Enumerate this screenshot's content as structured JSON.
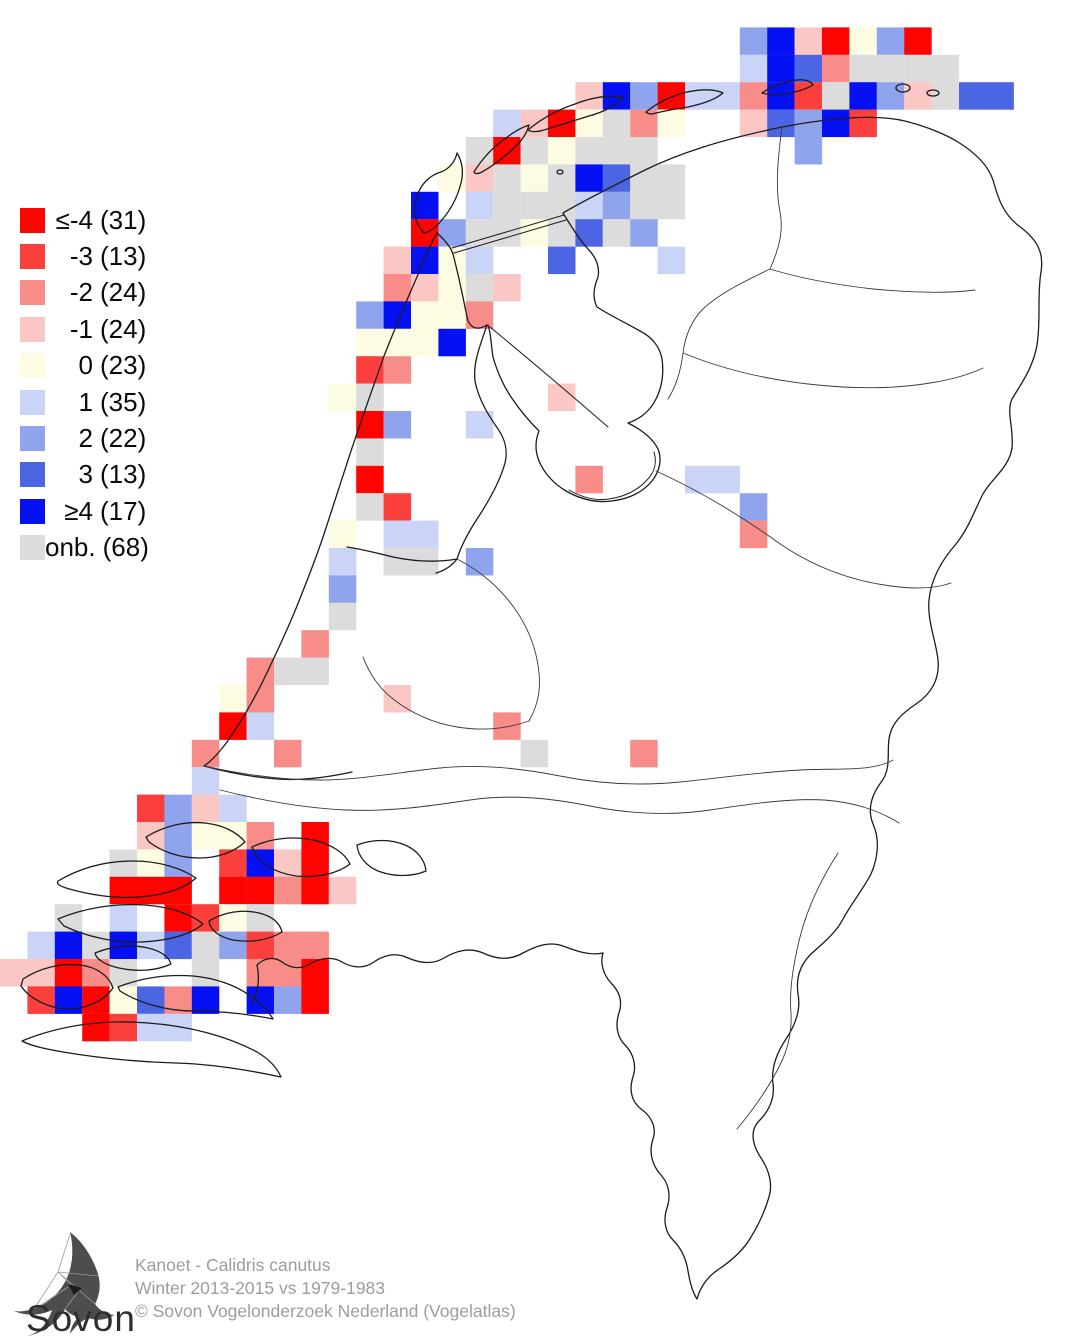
{
  "legend": {
    "items": [
      {
        "value": "≤-4",
        "count": "(31)",
        "class": "m4"
      },
      {
        "value": "-3",
        "count": "(13)",
        "class": "m3"
      },
      {
        "value": "-2",
        "count": "(24)",
        "class": "m2"
      },
      {
        "value": "-1",
        "count": "(24)",
        "class": "m1"
      },
      {
        "value": "0",
        "count": "(23)",
        "class": "z"
      },
      {
        "value": "1",
        "count": "(35)",
        "class": "p1"
      },
      {
        "value": "2",
        "count": "(22)",
        "class": "p2"
      },
      {
        "value": "3",
        "count": "(13)",
        "class": "p3"
      },
      {
        "value": "≥4",
        "count": "(17)",
        "class": "p4"
      },
      {
        "value": "onb.",
        "count": "(68)",
        "class": "onb"
      }
    ]
  },
  "colors": {
    "m4": "#fe0400",
    "m3": "#fb3f3d",
    "m2": "#f88c89",
    "m1": "#fbc7c4",
    "z": "#fdfce2",
    "p1": "#c9d4f6",
    "p2": "#90a4ee",
    "p3": "#4c65e2",
    "p4": "#0511f2",
    "onb": "#dcdcdc",
    "outline": "#1c1c1c",
    "province": "#3a3a3a"
  },
  "map": {
    "cell_size": 27.4,
    "cells": [
      [
        27,
        1,
        "p2"
      ],
      [
        28,
        1,
        "p4"
      ],
      [
        29,
        1,
        "m1"
      ],
      [
        30,
        1,
        "m4"
      ],
      [
        31,
        1,
        "z"
      ],
      [
        32,
        1,
        "p2"
      ],
      [
        33,
        1,
        "m4"
      ],
      [
        27,
        2,
        "p1"
      ],
      [
        28,
        2,
        "p4"
      ],
      [
        29,
        2,
        "p3"
      ],
      [
        30,
        2,
        "m2"
      ],
      [
        31,
        2,
        "onb"
      ],
      [
        32,
        2,
        "onb"
      ],
      [
        33,
        2,
        "onb"
      ],
      [
        34,
        2,
        "onb"
      ],
      [
        21,
        3,
        "m1"
      ],
      [
        22,
        3,
        "p4"
      ],
      [
        23,
        3,
        "p2"
      ],
      [
        24,
        3,
        "m4"
      ],
      [
        25,
        3,
        "p1"
      ],
      [
        26,
        3,
        "p1"
      ],
      [
        27,
        3,
        "m2"
      ],
      [
        28,
        3,
        "p4"
      ],
      [
        29,
        3,
        "m3"
      ],
      [
        30,
        3,
        "onb"
      ],
      [
        31,
        3,
        "p4"
      ],
      [
        32,
        3,
        "p2"
      ],
      [
        33,
        3,
        "m1"
      ],
      [
        34,
        3,
        "onb"
      ],
      [
        35,
        3,
        "p3"
      ],
      [
        36,
        3,
        "p3"
      ],
      [
        18,
        4,
        "p1"
      ],
      [
        19,
        4,
        "m1"
      ],
      [
        20,
        4,
        "m4"
      ],
      [
        21,
        4,
        "z"
      ],
      [
        22,
        4,
        "onb"
      ],
      [
        23,
        4,
        "m2"
      ],
      [
        24,
        4,
        "z"
      ],
      [
        27,
        4,
        "m1"
      ],
      [
        28,
        4,
        "p3"
      ],
      [
        29,
        4,
        "p2"
      ],
      [
        30,
        4,
        "p4"
      ],
      [
        31,
        4,
        "m3"
      ],
      [
        17,
        5,
        "onb"
      ],
      [
        18,
        5,
        "m4"
      ],
      [
        19,
        5,
        "onb"
      ],
      [
        20,
        5,
        "z"
      ],
      [
        21,
        5,
        "onb"
      ],
      [
        22,
        5,
        "onb"
      ],
      [
        23,
        5,
        "onb"
      ],
      [
        29,
        5,
        "p2"
      ],
      [
        16,
        6,
        "z"
      ],
      [
        17,
        6,
        "m1"
      ],
      [
        18,
        6,
        "onb"
      ],
      [
        19,
        6,
        "z"
      ],
      [
        20,
        6,
        "onb"
      ],
      [
        21,
        6,
        "p4"
      ],
      [
        22,
        6,
        "p3"
      ],
      [
        23,
        6,
        "onb"
      ],
      [
        24,
        6,
        "onb"
      ],
      [
        15,
        7,
        "p4"
      ],
      [
        17,
        7,
        "p1"
      ],
      [
        18,
        7,
        "onb"
      ],
      [
        19,
        7,
        "onb"
      ],
      [
        20,
        7,
        "onb"
      ],
      [
        21,
        7,
        "p1"
      ],
      [
        22,
        7,
        "p2"
      ],
      [
        23,
        7,
        "onb"
      ],
      [
        24,
        7,
        "onb"
      ],
      [
        15,
        8,
        "m4"
      ],
      [
        16,
        8,
        "p2"
      ],
      [
        17,
        8,
        "onb"
      ],
      [
        18,
        8,
        "onb"
      ],
      [
        19,
        8,
        "z"
      ],
      [
        20,
        8,
        "onb"
      ],
      [
        21,
        8,
        "p3"
      ],
      [
        22,
        8,
        "onb"
      ],
      [
        23,
        8,
        "p2"
      ],
      [
        14,
        9,
        "m1"
      ],
      [
        15,
        9,
        "p4"
      ],
      [
        16,
        9,
        "z"
      ],
      [
        17,
        9,
        "p1"
      ],
      [
        20,
        9,
        "p3"
      ],
      [
        24,
        9,
        "p1"
      ],
      [
        14,
        10,
        "m2"
      ],
      [
        15,
        10,
        "m1"
      ],
      [
        16,
        10,
        "z"
      ],
      [
        17,
        10,
        "onb"
      ],
      [
        18,
        10,
        "m1"
      ],
      [
        13,
        11,
        "p2"
      ],
      [
        14,
        11,
        "p4"
      ],
      [
        15,
        11,
        "z"
      ],
      [
        16,
        11,
        "z"
      ],
      [
        17,
        11,
        "m2"
      ],
      [
        13,
        12,
        "z"
      ],
      [
        14,
        12,
        "z"
      ],
      [
        15,
        12,
        "z"
      ],
      [
        16,
        12,
        "p4"
      ],
      [
        13,
        13,
        "m3"
      ],
      [
        14,
        13,
        "m2"
      ],
      [
        12,
        14,
        "z"
      ],
      [
        13,
        14,
        "onb"
      ],
      [
        20,
        14,
        "m1"
      ],
      [
        13,
        15,
        "m4"
      ],
      [
        14,
        15,
        "p2"
      ],
      [
        17,
        15,
        "p1"
      ],
      [
        13,
        16,
        "onb"
      ],
      [
        13,
        17,
        "m4"
      ],
      [
        21,
        17,
        "m2"
      ],
      [
        25,
        17,
        "p1"
      ],
      [
        26,
        17,
        "p1"
      ],
      [
        13,
        18,
        "onb"
      ],
      [
        14,
        18,
        "m3"
      ],
      [
        27,
        18,
        "p2"
      ],
      [
        12,
        19,
        "z"
      ],
      [
        14,
        19,
        "p1"
      ],
      [
        15,
        19,
        "p1"
      ],
      [
        27,
        19,
        "m2"
      ],
      [
        12,
        20,
        "p1"
      ],
      [
        14,
        20,
        "onb"
      ],
      [
        15,
        20,
        "onb"
      ],
      [
        17,
        20,
        "p2"
      ],
      [
        12,
        21,
        "p2"
      ],
      [
        12,
        22,
        "onb"
      ],
      [
        11,
        23,
        "m2"
      ],
      [
        9,
        24,
        "m2"
      ],
      [
        10,
        24,
        "onb"
      ],
      [
        11,
        24,
        "onb"
      ],
      [
        8,
        25,
        "z"
      ],
      [
        9,
        25,
        "m2"
      ],
      [
        14,
        25,
        "m1"
      ],
      [
        8,
        26,
        "m4"
      ],
      [
        9,
        26,
        "p1"
      ],
      [
        18,
        26,
        "m2"
      ],
      [
        7,
        27,
        "m2"
      ],
      [
        10,
        27,
        "m2"
      ],
      [
        19,
        27,
        "onb"
      ],
      [
        23,
        27,
        "m2"
      ],
      [
        7,
        28,
        "p1"
      ],
      [
        5,
        29,
        "m3"
      ],
      [
        6,
        29,
        "p2"
      ],
      [
        7,
        29,
        "m1"
      ],
      [
        8,
        29,
        "p1"
      ],
      [
        5,
        30,
        "m1"
      ],
      [
        6,
        30,
        "p2"
      ],
      [
        7,
        30,
        "z"
      ],
      [
        8,
        30,
        "z"
      ],
      [
        9,
        30,
        "m2"
      ],
      [
        11,
        30,
        "m4"
      ],
      [
        4,
        31,
        "onb"
      ],
      [
        5,
        31,
        "z"
      ],
      [
        6,
        31,
        "p2"
      ],
      [
        8,
        31,
        "m3"
      ],
      [
        9,
        31,
        "p4"
      ],
      [
        10,
        31,
        "m1"
      ],
      [
        11,
        31,
        "m4"
      ],
      [
        4,
        32,
        "m4"
      ],
      [
        5,
        32,
        "m4"
      ],
      [
        6,
        32,
        "m4"
      ],
      [
        8,
        32,
        "m4"
      ],
      [
        9,
        32,
        "m4"
      ],
      [
        10,
        32,
        "m2"
      ],
      [
        11,
        32,
        "m4"
      ],
      [
        12,
        32,
        "m1"
      ],
      [
        2,
        33,
        "onb"
      ],
      [
        4,
        33,
        "p1"
      ],
      [
        6,
        33,
        "m4"
      ],
      [
        7,
        33,
        "m3"
      ],
      [
        8,
        33,
        "z"
      ],
      [
        9,
        33,
        "onb"
      ],
      [
        1,
        34,
        "p1"
      ],
      [
        2,
        34,
        "p4"
      ],
      [
        3,
        34,
        "onb"
      ],
      [
        4,
        34,
        "p4"
      ],
      [
        5,
        34,
        "p1"
      ],
      [
        6,
        34,
        "p3"
      ],
      [
        7,
        34,
        "onb"
      ],
      [
        8,
        34,
        "p2"
      ],
      [
        9,
        34,
        "m3"
      ],
      [
        10,
        34,
        "m2"
      ],
      [
        11,
        34,
        "m2"
      ],
      [
        0,
        35,
        "m1"
      ],
      [
        1,
        35,
        "m1"
      ],
      [
        2,
        35,
        "m4"
      ],
      [
        3,
        35,
        "m2"
      ],
      [
        4,
        35,
        "onb"
      ],
      [
        7,
        35,
        "onb"
      ],
      [
        9,
        35,
        "m2"
      ],
      [
        10,
        35,
        "m2"
      ],
      [
        11,
        35,
        "m4"
      ],
      [
        1,
        36,
        "m3"
      ],
      [
        2,
        36,
        "p4"
      ],
      [
        3,
        36,
        "m4"
      ],
      [
        4,
        36,
        "z"
      ],
      [
        5,
        36,
        "p3"
      ],
      [
        6,
        36,
        "m2"
      ],
      [
        7,
        36,
        "p4"
      ],
      [
        9,
        36,
        "p4"
      ],
      [
        10,
        36,
        "p2"
      ],
      [
        11,
        36,
        "m4"
      ],
      [
        3,
        37,
        "m4"
      ],
      [
        4,
        37,
        "m3"
      ],
      [
        5,
        37,
        "p1"
      ],
      [
        6,
        37,
        "p1"
      ]
    ]
  },
  "footer": {
    "logo_text": "Sovon",
    "line1": "Kanoet - Calidris canutus",
    "line2": "Winter 2013-2015 vs 1979-1983",
    "line3": "© Sovon Vogelonderzoek Nederland (Vogelatlas)"
  }
}
